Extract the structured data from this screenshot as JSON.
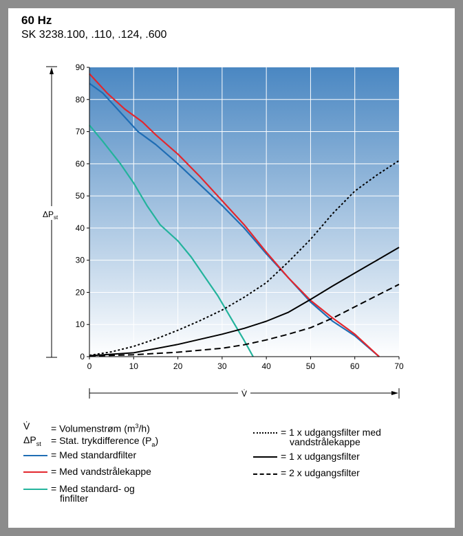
{
  "header": {
    "title": "60 Hz",
    "subtitle": "SK 3238.100, .110, .124, .600"
  },
  "colors": {
    "gradient_top": "#4a87c2",
    "gradient_bottom": "#ffffff",
    "grid": "#ffffff",
    "series_standard": "#1f6db4",
    "series_water": "#e3262d",
    "series_fine": "#23b39c",
    "series_black": "#000000"
  },
  "chart_data": {
    "type": "line",
    "title": "60 Hz",
    "xlabel": "V̇",
    "ylabel": "ΔPst",
    "xlim": [
      0,
      70
    ],
    "ylim": [
      0,
      90
    ],
    "xticks": [
      "0",
      "10",
      "20",
      "30",
      "40",
      "50",
      "60",
      "70"
    ],
    "yticks": [
      "0",
      "10",
      "20",
      "30",
      "40",
      "50",
      "60",
      "70",
      "80",
      "90"
    ],
    "grid": true,
    "series": [
      {
        "name": "Med standardfilter",
        "color": "#1f6db4",
        "dash": "solid",
        "points": [
          [
            0,
            85
          ],
          [
            3,
            82
          ],
          [
            7,
            76
          ],
          [
            11,
            70
          ],
          [
            12,
            69
          ],
          [
            15,
            66
          ],
          [
            20,
            60
          ],
          [
            25,
            53.5
          ],
          [
            30,
            47
          ],
          [
            35,
            40
          ],
          [
            40,
            32
          ],
          [
            45,
            24.5
          ],
          [
            50,
            17
          ],
          [
            55,
            11
          ],
          [
            60,
            6.5
          ],
          [
            65.5,
            0
          ]
        ]
      },
      {
        "name": "Med vandstrålekappe",
        "color": "#e3262d",
        "dash": "solid",
        "points": [
          [
            0,
            88
          ],
          [
            4,
            82
          ],
          [
            8,
            77
          ],
          [
            12,
            73
          ],
          [
            15,
            69
          ],
          [
            20,
            63
          ],
          [
            25,
            56
          ],
          [
            30,
            48.5
          ],
          [
            35,
            41
          ],
          [
            40,
            32.5
          ],
          [
            45,
            24.5
          ],
          [
            50,
            17.5
          ],
          [
            55,
            12
          ],
          [
            60,
            7
          ],
          [
            65.5,
            0
          ]
        ]
      },
      {
        "name": "Med standard- og finfilter",
        "color": "#23b39c",
        "dash": "solid",
        "points": [
          [
            0,
            72
          ],
          [
            3,
            67
          ],
          [
            7,
            60
          ],
          [
            10,
            54
          ],
          [
            13,
            47
          ],
          [
            16,
            41
          ],
          [
            20,
            36
          ],
          [
            23,
            31
          ],
          [
            26,
            25
          ],
          [
            29,
            19
          ],
          [
            32,
            12
          ],
          [
            35,
            5
          ],
          [
            37,
            0
          ]
        ]
      },
      {
        "name": "1 x udgangsfilter med vandstrålekappe",
        "color": "#000000",
        "dash": "dotted",
        "points": [
          [
            0,
            0.4
          ],
          [
            5,
            1.5
          ],
          [
            10,
            3.2
          ],
          [
            15,
            5.5
          ],
          [
            20,
            8.2
          ],
          [
            25,
            11.2
          ],
          [
            30,
            14.5
          ],
          [
            35,
            18.5
          ],
          [
            40,
            23
          ],
          [
            45,
            29.5
          ],
          [
            50,
            36.5
          ],
          [
            55,
            44.5
          ],
          [
            60,
            51.5
          ],
          [
            65,
            56.5
          ],
          [
            70,
            61
          ]
        ]
      },
      {
        "name": "1 x udgangsfilter",
        "color": "#000000",
        "dash": "solid",
        "points": [
          [
            0,
            0.3
          ],
          [
            10,
            1.2
          ],
          [
            20,
            3.8
          ],
          [
            30,
            7
          ],
          [
            35,
            8.8
          ],
          [
            40,
            11
          ],
          [
            45,
            13.8
          ],
          [
            50,
            17.8
          ],
          [
            55,
            22
          ],
          [
            60,
            26
          ],
          [
            65,
            30
          ],
          [
            70,
            34
          ]
        ]
      },
      {
        "name": "2 x udgangsfilter",
        "color": "#000000",
        "dash": "dashed",
        "points": [
          [
            0,
            0.2
          ],
          [
            10,
            0.6
          ],
          [
            20,
            1.4
          ],
          [
            30,
            2.6
          ],
          [
            35,
            3.7
          ],
          [
            40,
            5.2
          ],
          [
            45,
            7
          ],
          [
            50,
            9
          ],
          [
            55,
            12
          ],
          [
            60,
            15.5
          ],
          [
            65,
            19
          ],
          [
            70,
            22.5
          ]
        ]
      }
    ]
  },
  "legend": {
    "v_symbol": "V̇",
    "v_text": "= Volumenstrøm (m³/h)",
    "p_symbol": "ΔPst",
    "p_text": "= Stat. trykdifference (Pa)",
    "standard": "= Med standardfilter",
    "water": "= Med vandstrålekappe",
    "fine_1": "= Med standard- og",
    "fine_2": "finfilter",
    "dotted_1": "= 1 x udgangsfilter med",
    "dotted_2": "vandstrålekappe",
    "solid": "= 1 x udgangsfilter",
    "dashed": "= 2 x udgangsfilter"
  }
}
